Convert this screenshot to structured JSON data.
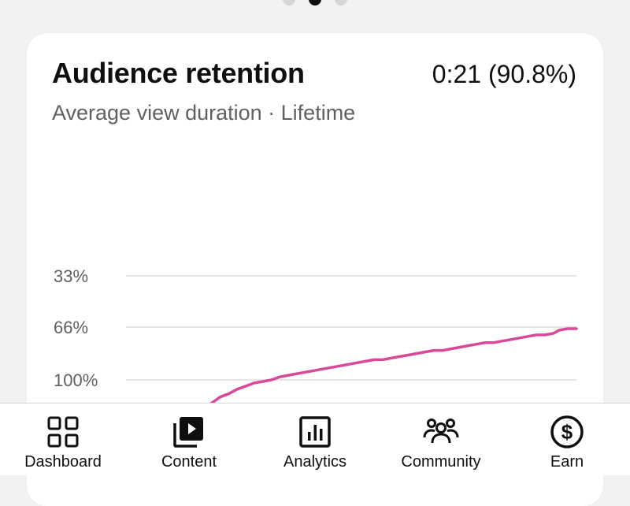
{
  "pager": {
    "pages": 3,
    "active_index": 1
  },
  "card": {
    "title": "Audience retention",
    "value": "0:21 (90.8%)",
    "subtitle": "Average view duration · Lifetime"
  },
  "chart_data": {
    "type": "line",
    "y_ticks": [
      {
        "value": 100,
        "label": "100%"
      },
      {
        "value": 66,
        "label": "66%"
      },
      {
        "value": 33,
        "label": "33%"
      }
    ],
    "series": [
      {
        "color": "#d9499a",
        "points": [
          [
            0,
            170
          ],
          [
            2,
            168
          ],
          [
            4,
            162
          ],
          [
            6,
            148
          ],
          [
            8,
            136
          ],
          [
            10,
            131
          ],
          [
            12,
            129
          ],
          [
            15,
            127
          ],
          [
            18,
            126
          ],
          [
            21,
            125
          ],
          [
            24,
            123
          ],
          [
            27,
            119
          ],
          [
            30,
            115
          ],
          [
            33,
            111
          ],
          [
            36,
            109
          ],
          [
            39,
            106
          ],
          [
            42,
            104
          ],
          [
            45,
            102
          ],
          [
            48,
            101
          ],
          [
            51,
            100
          ],
          [
            54,
            98
          ],
          [
            57,
            97
          ],
          [
            60,
            96
          ],
          [
            63,
            95
          ],
          [
            66,
            94
          ],
          [
            69,
            93
          ],
          [
            72,
            92
          ],
          [
            75,
            91
          ],
          [
            78,
            90
          ],
          [
            81,
            89
          ],
          [
            84,
            88
          ],
          [
            87,
            87
          ],
          [
            90,
            87
          ],
          [
            93,
            86
          ],
          [
            96,
            85
          ],
          [
            99,
            84
          ],
          [
            102,
            83
          ],
          [
            105,
            82
          ],
          [
            108,
            81
          ],
          [
            111,
            81
          ],
          [
            114,
            80
          ],
          [
            117,
            79
          ],
          [
            120,
            78
          ],
          [
            123,
            77
          ],
          [
            126,
            76
          ],
          [
            129,
            76
          ],
          [
            132,
            75
          ],
          [
            135,
            74
          ],
          [
            138,
            73
          ],
          [
            141,
            72
          ],
          [
            144,
            71
          ],
          [
            147,
            71
          ],
          [
            150,
            70
          ],
          [
            152,
            68
          ],
          [
            155,
            67
          ],
          [
            158,
            67
          ]
        ]
      }
    ],
    "grid": true,
    "legend": "none"
  },
  "colors": {
    "line": "#d9499a",
    "grid": "#e5e5e5",
    "text_secondary": "#606060",
    "pager_active": "#0f0f0f",
    "pager_inactive": "#d6d6d6"
  },
  "nav": [
    {
      "id": "dashboard",
      "label": "Dashboard",
      "icon": "dashboard-icon"
    },
    {
      "id": "content",
      "label": "Content",
      "icon": "content-icon"
    },
    {
      "id": "analytics",
      "label": "Analytics",
      "icon": "analytics-icon"
    },
    {
      "id": "community",
      "label": "Community",
      "icon": "community-icon"
    },
    {
      "id": "earn",
      "label": "Earn",
      "icon": "earn-icon"
    }
  ]
}
